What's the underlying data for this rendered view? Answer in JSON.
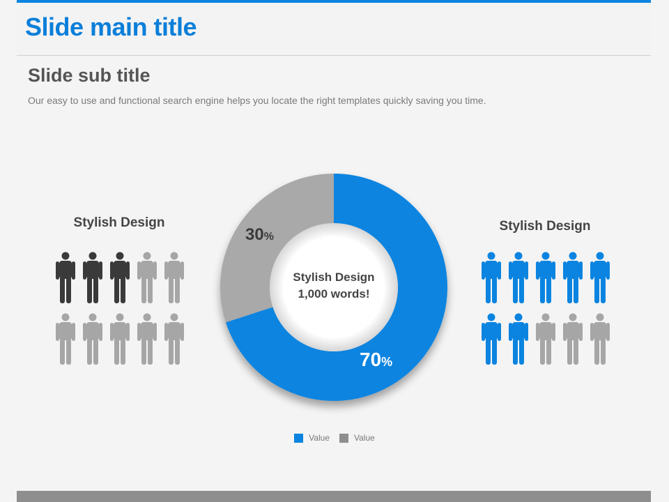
{
  "header": {
    "title": "Slide main title"
  },
  "subtitle": "Slide sub title",
  "description": "Our easy to use and functional search engine helps you locate the right templates quickly  saving you time.",
  "left_group": {
    "label": "Stylish Design",
    "total": 10,
    "highlighted": 3,
    "highlight_color": "#3a3a3a",
    "base_color": "#a6a6a6"
  },
  "right_group": {
    "label": "Stylish Design",
    "total": 10,
    "highlighted": 7,
    "highlight_color": "#0a84e0",
    "base_color": "#a6a6a6"
  },
  "center": {
    "line1": "Stylish Design",
    "line2": "1,000 words!"
  },
  "labels": {
    "slice1_num": "70",
    "slice1_unit": "%",
    "slice2_num": "30",
    "slice2_unit": "%"
  },
  "legend": [
    {
      "label": "Value",
      "color": "#0a84e0"
    },
    {
      "label": "Value",
      "color": "#8e8e8e"
    }
  ],
  "chart_data": {
    "type": "pie",
    "donut": true,
    "title": "",
    "slices": [
      {
        "label": "Value",
        "value": 70,
        "color": "#0a84e0"
      },
      {
        "label": "Value",
        "value": 30,
        "color": "#a9a9a9"
      }
    ],
    "legend_position": "bottom"
  }
}
